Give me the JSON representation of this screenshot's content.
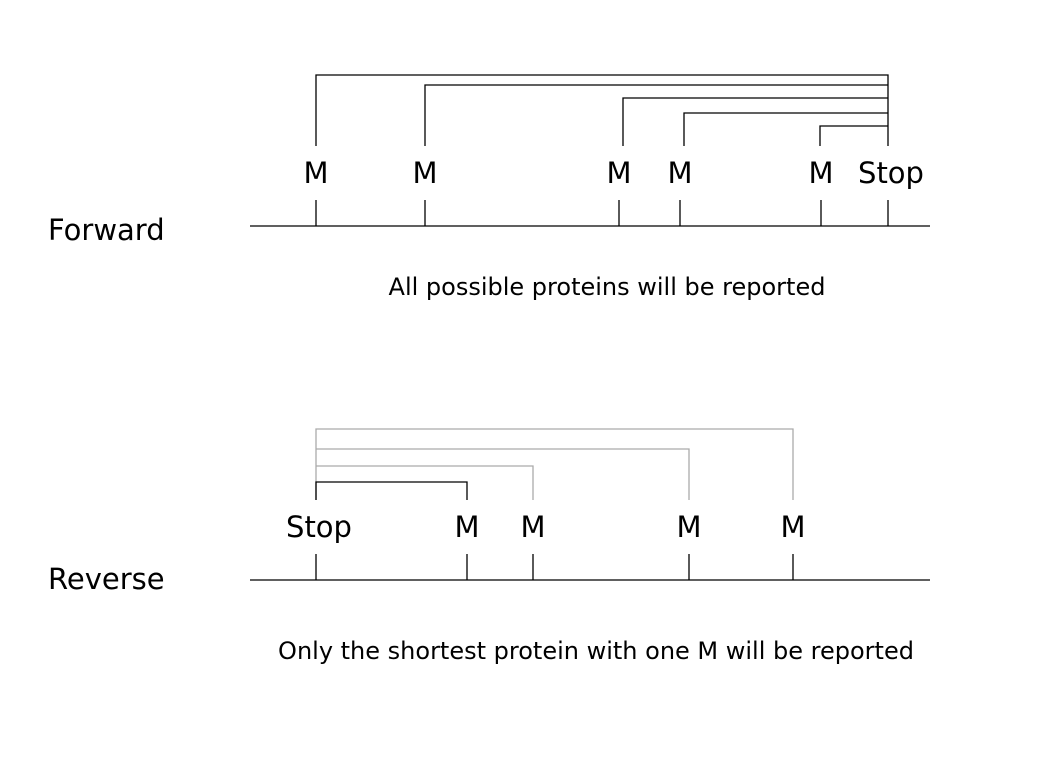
{
  "forward": {
    "strand_label": "Forward",
    "sites": [
      "M",
      "M",
      "M",
      "M",
      "M",
      "Stop"
    ],
    "caption": "All possible proteins will be reported",
    "bracket_color": "#000000"
  },
  "reverse": {
    "strand_label": "Reverse",
    "sites": [
      "Stop",
      "M",
      "M",
      "M",
      "M"
    ],
    "caption": "Only the shortest protein with one M will be reported",
    "reported_bracket_color": "#000000",
    "unreported_bracket_color": "#aaaaaa"
  }
}
